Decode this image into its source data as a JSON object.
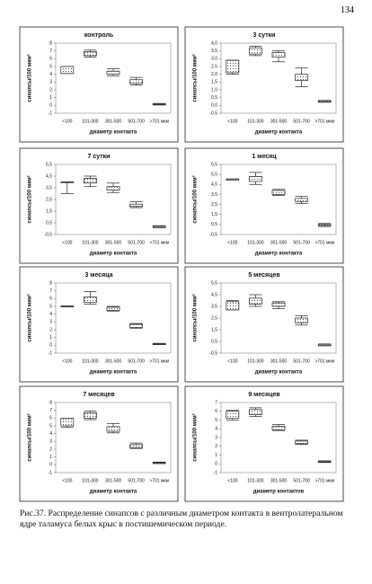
{
  "page_number": "134",
  "caption": "Рис.37. Распределение синапсов с различным диаметром контакта в вентролатеральном ядре таламуса белых крыс в постишемическом периоде.",
  "chart_data": [
    {
      "type": "box",
      "title": "контроль",
      "ylabel": "синапсы/100 мкм²",
      "xlabel": "диаметр контакта",
      "categories": [
        "<100",
        "101-300",
        "301-500",
        "501-700",
        ">701 мкм"
      ],
      "whisker_low": [
        4.1,
        6.2,
        3.8,
        2.6,
        0.05
      ],
      "q1": [
        4.1,
        6.4,
        4.0,
        2.8,
        0.1
      ],
      "q3": [
        5.0,
        6.9,
        4.4,
        3.3,
        0.2
      ],
      "whisker_high": [
        5.0,
        7.1,
        4.7,
        3.6,
        0.25
      ],
      "ylim": [
        -1,
        8
      ],
      "yticks": [
        -1,
        0,
        1,
        2,
        3,
        4,
        5,
        6,
        7,
        8
      ]
    },
    {
      "type": "box",
      "title": "3 сутки",
      "ylabel": "синапсы/100 мкм²",
      "xlabel": "диаметр контакта",
      "categories": [
        "<100",
        "101-300",
        "301-500",
        "501-700",
        ">701 мкм"
      ],
      "whisker_low": [
        2.0,
        3.2,
        2.8,
        1.2,
        0.2
      ],
      "q1": [
        2.1,
        3.3,
        3.1,
        1.6,
        0.22
      ],
      "q3": [
        2.9,
        3.7,
        3.4,
        2.0,
        0.3
      ],
      "whisker_high": [
        2.9,
        3.8,
        3.5,
        2.4,
        0.32
      ],
      "ylim": [
        -0.5,
        4.0
      ],
      "yticks": [
        {
          "value": -0.5,
          "label": "-0,5"
        },
        {
          "value": 0,
          "label": "0,0"
        },
        {
          "value": 0.5,
          "label": "0,5"
        },
        {
          "value": 1.0,
          "label": "1,0"
        },
        {
          "value": 1.5,
          "label": "1,5"
        },
        {
          "value": 2.0,
          "label": "2,0"
        },
        {
          "value": 2.5,
          "label": "2,5"
        },
        {
          "value": 3.0,
          "label": "3,0"
        },
        {
          "value": 3.5,
          "label": "3,5"
        },
        {
          "value": 4.0,
          "label": "4,0"
        }
      ]
    },
    {
      "type": "box",
      "title": "7 сутки",
      "ylabel": "синапсы/100 мкм²",
      "xlabel": "диаметр контакта",
      "categories": [
        "<100",
        "101-300",
        "301-500",
        "501-700",
        ">701 мкм"
      ],
      "whisker_low": [
        3.0,
        3.6,
        3.1,
        1.8,
        0.08
      ],
      "q1": [
        3.95,
        3.9,
        3.3,
        1.9,
        0.1
      ],
      "q3": [
        4.0,
        4.3,
        3.6,
        2.1,
        0.2
      ],
      "whisker_high": [
        4.0,
        4.5,
        3.9,
        2.3,
        0.25
      ],
      "ylim": [
        -0.5,
        5.5
      ],
      "yticks": [
        {
          "value": -0.5,
          "label": "-0,5"
        },
        {
          "value": 0.5,
          "label": "0,5"
        },
        {
          "value": 1.5,
          "label": "1,5"
        },
        {
          "value": 2.5,
          "label": "2,5"
        },
        {
          "value": 3.5,
          "label": "3,5"
        },
        {
          "value": 4.5,
          "label": "4,5"
        },
        {
          "value": 5.5,
          "label": "5,5"
        }
      ]
    },
    {
      "type": "box",
      "title": "1 месяц",
      "ylabel": "синапсы/100 мкм²",
      "xlabel": "диаметр контакта",
      "categories": [
        "<100",
        "101-300",
        "301-500",
        "501-700",
        ">701 мкм"
      ],
      "whisker_low": [
        4.95,
        4.5,
        3.4,
        2.6,
        0.3
      ],
      "q1": [
        4.95,
        4.8,
        3.5,
        2.8,
        0.4
      ],
      "q3": [
        5.05,
        5.3,
        3.9,
        3.1,
        0.5
      ],
      "whisker_high": [
        5.05,
        5.7,
        4.0,
        3.3,
        0.6
      ],
      "ylim": [
        -0.5,
        6.5
      ],
      "yticks": [
        {
          "value": -0.5,
          "label": "-0,5"
        },
        {
          "value": 0.5,
          "label": "0,5"
        },
        {
          "value": 1.5,
          "label": "1,5"
        },
        {
          "value": 2.5,
          "label": "2,5"
        },
        {
          "value": 3.5,
          "label": "3,5"
        },
        {
          "value": 4.5,
          "label": "4,5"
        },
        {
          "value": 5.5,
          "label": "5,5"
        },
        {
          "value": 6.5,
          "label": "6,5"
        }
      ]
    },
    {
      "type": "box",
      "title": "3 месяца",
      "ylabel": "синапсы/100 мкм²",
      "xlabel": "диаметр контакта",
      "categories": [
        "<100",
        "101-300",
        "301-500",
        "501-700",
        ">701 мкм"
      ],
      "whisker_low": [
        4.95,
        5.3,
        4.4,
        2.2,
        0.08
      ],
      "q1": [
        4.95,
        5.5,
        4.5,
        2.3,
        0.1
      ],
      "q3": [
        5.05,
        6.2,
        4.9,
        2.7,
        0.2
      ],
      "whisker_high": [
        5.05,
        6.9,
        5.0,
        2.8,
        0.25
      ],
      "ylim": [
        -1,
        8
      ],
      "yticks": [
        -1,
        0,
        1,
        2,
        3,
        4,
        5,
        6,
        7,
        8
      ]
    },
    {
      "type": "box",
      "title": "5 месяцев",
      "ylabel": "синапсы/100 мкм²",
      "xlabel": "диаметр контакта",
      "categories": [
        "<100",
        "101-300",
        "301-500",
        "501-700",
        ">701 мкм"
      ],
      "whisker_low": [
        3.2,
        3.5,
        3.3,
        1.9,
        0.12
      ],
      "q1": [
        3.2,
        3.7,
        3.5,
        2.1,
        0.15
      ],
      "q3": [
        3.9,
        4.2,
        3.8,
        2.5,
        0.25
      ],
      "whisker_high": [
        4.0,
        4.5,
        3.9,
        2.7,
        0.28
      ],
      "ylim": [
        -0.5,
        5.5
      ],
      "yticks": [
        {
          "value": -0.5,
          "label": "-0,5"
        },
        {
          "value": 0.5,
          "label": "0,5"
        },
        {
          "value": 1.5,
          "label": "1,5"
        },
        {
          "value": 2.5,
          "label": "2,5"
        },
        {
          "value": 3.5,
          "label": "3,5"
        },
        {
          "value": 4.5,
          "label": "4,5"
        },
        {
          "value": 5.5,
          "label": "5,5"
        }
      ]
    },
    {
      "type": "box",
      "title": "7 месяцев",
      "ylabel": "синапсы/100 мкм²",
      "xlabel": "диаметр контакта",
      "categories": [
        "<100",
        "101-300",
        "301-500",
        "501-700",
        ">701 мкм"
      ],
      "whisker_low": [
        4.8,
        5.8,
        4.1,
        2.1,
        0.15
      ],
      "q1": [
        5.0,
        6.0,
        4.3,
        2.2,
        0.2
      ],
      "q3": [
        6.0,
        6.7,
        4.9,
        2.6,
        0.3
      ],
      "whisker_high": [
        6.0,
        6.9,
        5.3,
        2.8,
        0.35
      ],
      "ylim": [
        -1,
        8
      ],
      "yticks": [
        -1,
        0,
        1,
        2,
        3,
        4,
        5,
        6,
        7,
        8
      ]
    },
    {
      "type": "box",
      "title": "9 месяцев",
      "ylabel": "синапсы/100 мкм²",
      "xlabel": "диаметр контактов",
      "categories": [
        "<100",
        "101-300",
        "301-500",
        "501-700",
        ">701 мкм"
      ],
      "whisker_low": [
        5.0,
        5.4,
        3.8,
        2.2,
        0.15
      ],
      "q1": [
        5.2,
        5.6,
        3.9,
        2.3,
        0.2
      ],
      "q3": [
        6.0,
        6.2,
        4.3,
        2.6,
        0.3
      ],
      "whisker_high": [
        6.1,
        6.4,
        4.5,
        2.7,
        0.35
      ],
      "ylim": [
        -1,
        7
      ],
      "yticks": [
        -1,
        0,
        1,
        2,
        3,
        4,
        5,
        6,
        7
      ]
    }
  ]
}
